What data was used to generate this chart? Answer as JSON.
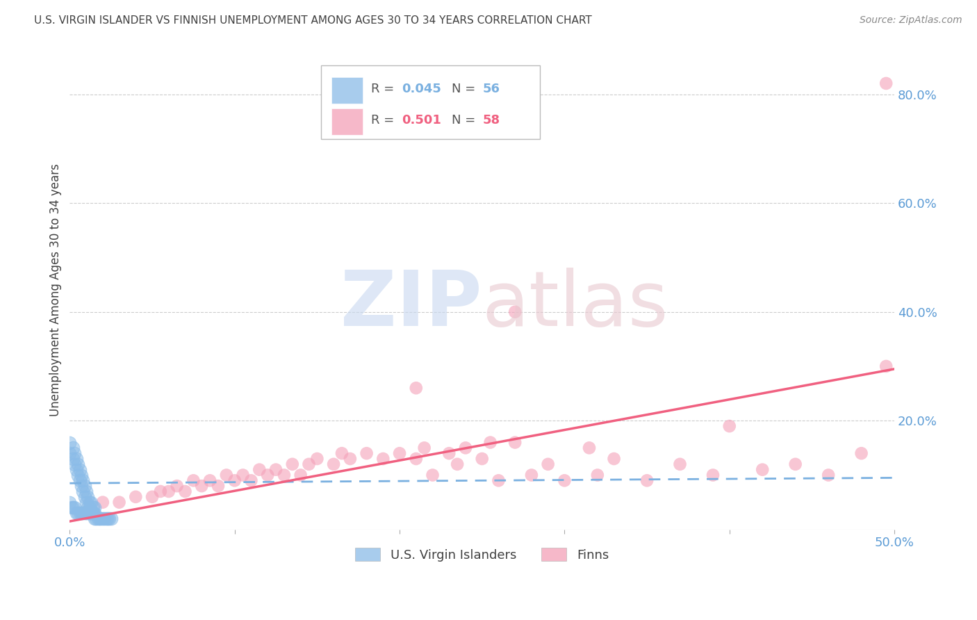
{
  "title": "U.S. VIRGIN ISLANDER VS FINNISH UNEMPLOYMENT AMONG AGES 30 TO 34 YEARS CORRELATION CHART",
  "source": "Source: ZipAtlas.com",
  "ylabel": "Unemployment Among Ages 30 to 34 years",
  "xlim": [
    0.0,
    0.5
  ],
  "ylim": [
    0.0,
    0.88
  ],
  "blue_color": "#8bbce8",
  "pink_color": "#f4a0b8",
  "blue_line_color": "#7ab0e0",
  "pink_line_color": "#f06080",
  "background_color": "#ffffff",
  "grid_color": "#cccccc",
  "title_color": "#404040",
  "tick_color": "#5b9bd5",
  "blue_scatter_x": [
    0.0,
    0.0,
    0.002,
    0.002,
    0.003,
    0.003,
    0.004,
    0.004,
    0.005,
    0.005,
    0.006,
    0.006,
    0.007,
    0.007,
    0.008,
    0.008,
    0.009,
    0.009,
    0.01,
    0.01,
    0.011,
    0.011,
    0.012,
    0.012,
    0.013,
    0.013,
    0.014,
    0.014,
    0.015,
    0.015,
    0.0,
    0.001,
    0.002,
    0.003,
    0.004,
    0.005,
    0.006,
    0.007,
    0.008,
    0.009,
    0.01,
    0.011,
    0.012,
    0.013,
    0.014,
    0.015,
    0.016,
    0.017,
    0.018,
    0.019,
    0.02,
    0.021,
    0.022,
    0.023,
    0.024,
    0.025
  ],
  "blue_scatter_y": [
    0.14,
    0.16,
    0.13,
    0.15,
    0.12,
    0.14,
    0.11,
    0.13,
    0.1,
    0.12,
    0.09,
    0.11,
    0.08,
    0.1,
    0.07,
    0.09,
    0.06,
    0.08,
    0.05,
    0.07,
    0.04,
    0.06,
    0.04,
    0.05,
    0.03,
    0.05,
    0.03,
    0.04,
    0.03,
    0.04,
    0.05,
    0.04,
    0.04,
    0.04,
    0.03,
    0.03,
    0.03,
    0.03,
    0.03,
    0.03,
    0.03,
    0.03,
    0.03,
    0.03,
    0.03,
    0.02,
    0.02,
    0.02,
    0.02,
    0.02,
    0.02,
    0.02,
    0.02,
    0.02,
    0.02,
    0.02
  ],
  "pink_scatter_x": [
    0.02,
    0.03,
    0.04,
    0.05,
    0.055,
    0.06,
    0.065,
    0.07,
    0.075,
    0.08,
    0.085,
    0.09,
    0.095,
    0.1,
    0.105,
    0.11,
    0.115,
    0.12,
    0.125,
    0.13,
    0.135,
    0.14,
    0.145,
    0.15,
    0.16,
    0.165,
    0.17,
    0.18,
    0.19,
    0.2,
    0.21,
    0.215,
    0.22,
    0.23,
    0.235,
    0.24,
    0.25,
    0.255,
    0.26,
    0.27,
    0.28,
    0.29,
    0.3,
    0.315,
    0.32,
    0.33,
    0.35,
    0.37,
    0.39,
    0.4,
    0.42,
    0.44,
    0.46,
    0.48,
    0.495,
    0.27,
    0.21,
    0.495
  ],
  "pink_scatter_y": [
    0.05,
    0.05,
    0.06,
    0.06,
    0.07,
    0.07,
    0.08,
    0.07,
    0.09,
    0.08,
    0.09,
    0.08,
    0.1,
    0.09,
    0.1,
    0.09,
    0.11,
    0.1,
    0.11,
    0.1,
    0.12,
    0.1,
    0.12,
    0.13,
    0.12,
    0.14,
    0.13,
    0.14,
    0.13,
    0.14,
    0.13,
    0.15,
    0.1,
    0.14,
    0.12,
    0.15,
    0.13,
    0.16,
    0.09,
    0.16,
    0.1,
    0.12,
    0.09,
    0.15,
    0.1,
    0.13,
    0.09,
    0.12,
    0.1,
    0.19,
    0.11,
    0.12,
    0.1,
    0.14,
    0.3,
    0.4,
    0.26,
    0.82
  ],
  "blue_trend": [
    0.085,
    0.095
  ],
  "pink_trend": [
    0.015,
    0.295
  ]
}
